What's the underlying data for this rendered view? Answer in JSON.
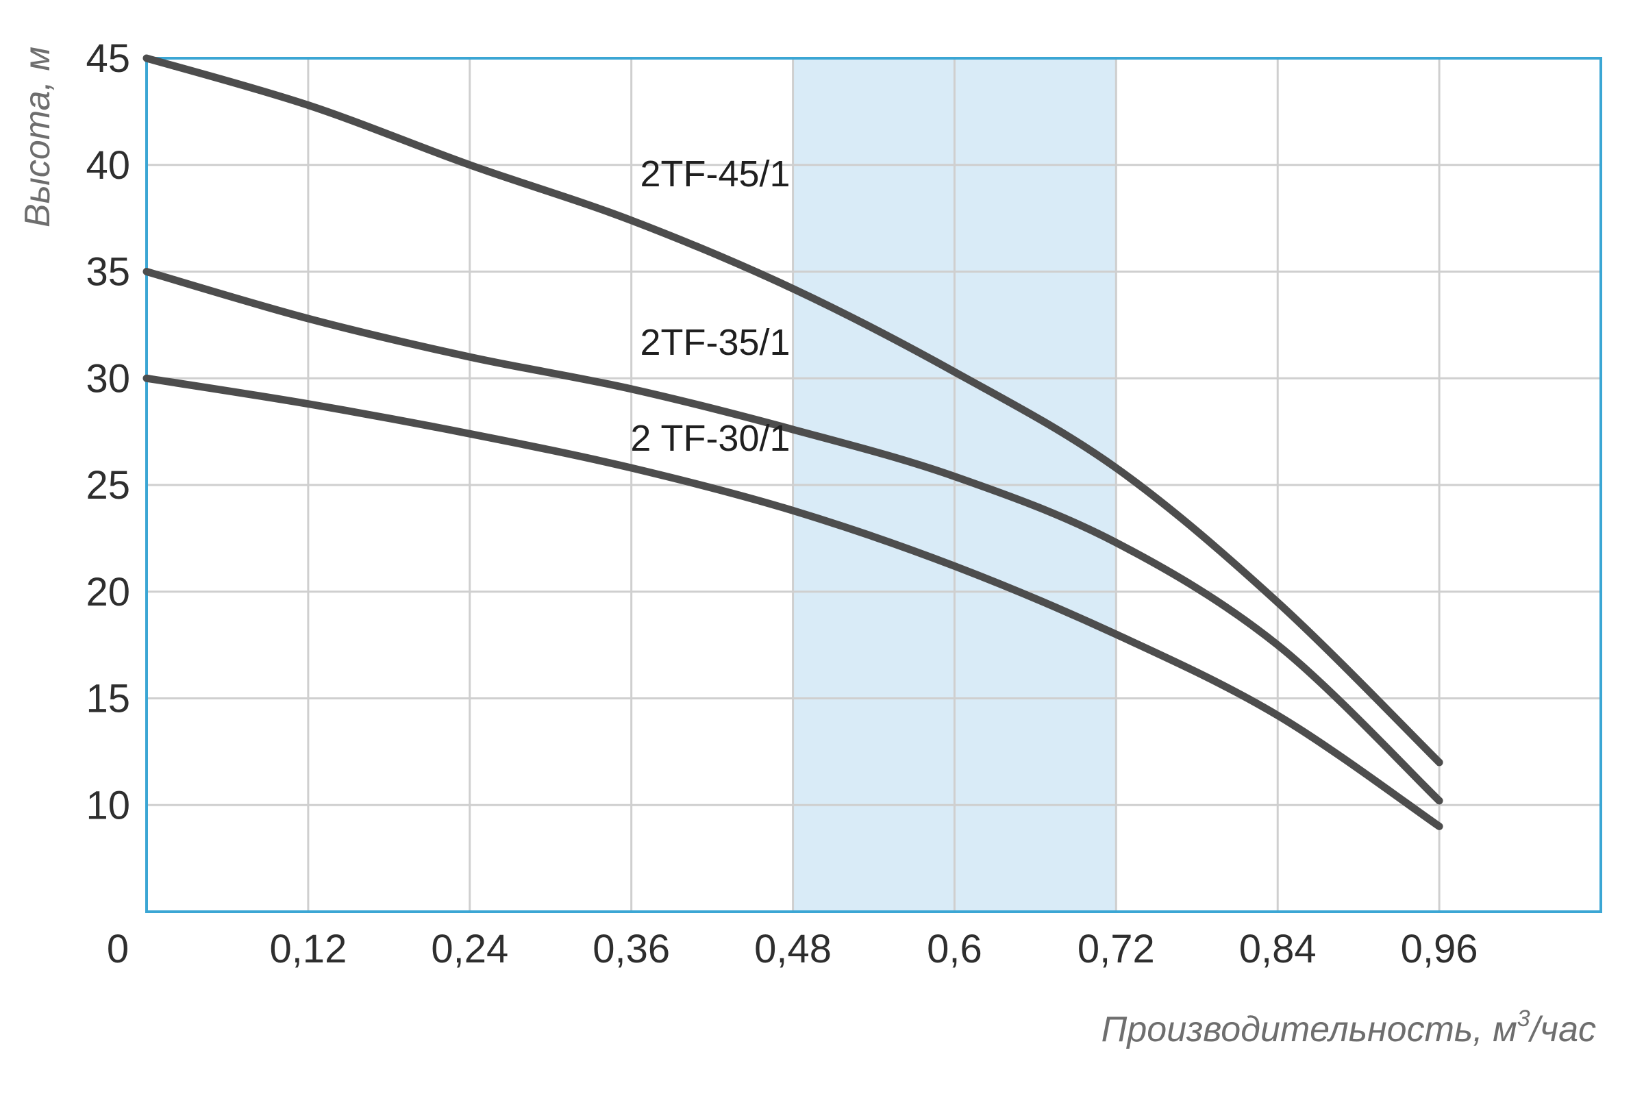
{
  "chart_data": {
    "type": "line",
    "ylabel": "Высота, м",
    "xlabel_main": "Производительность, м",
    "xlabel_sup": "3",
    "xlabel_tail": "/час",
    "x_ticks": [
      0.12,
      0.24,
      0.36,
      0.48,
      0.6,
      0.72,
      0.84,
      0.96
    ],
    "x_tick_labels": [
      "0,12",
      "0,24",
      "0,36",
      "0,48",
      "0,6",
      "0,72",
      "0,84",
      "0,96"
    ],
    "y_ticks": [
      10,
      15,
      20,
      25,
      30,
      35,
      40,
      45
    ],
    "y_tick_labels": [
      "10",
      "15",
      "20",
      "25",
      "30",
      "35",
      "40",
      "45"
    ],
    "origin_label": "0",
    "xlim": [
      0,
      1.08
    ],
    "ylim": [
      5,
      45
    ],
    "grid": true,
    "highlight_band": {
      "x_from": 0.48,
      "x_to": 0.72,
      "color": "#d9ebf7"
    },
    "colors": {
      "frame": "#3ba6d4",
      "grid": "#cfcfcf",
      "line": "#4d4d4d"
    },
    "series": [
      {
        "name": "2TF-45/1",
        "x": [
          0,
          0.12,
          0.24,
          0.36,
          0.48,
          0.6,
          0.72,
          0.84,
          0.96
        ],
        "y": [
          45,
          42.8,
          40,
          37.4,
          34.2,
          30.3,
          25.8,
          19.5,
          12
        ]
      },
      {
        "name": "2TF-35/1",
        "x": [
          0,
          0.12,
          0.24,
          0.36,
          0.48,
          0.6,
          0.72,
          0.84,
          0.96
        ],
        "y": [
          35,
          32.8,
          31,
          29.5,
          27.6,
          25.4,
          22.3,
          17.5,
          10.2
        ]
      },
      {
        "name": "2 TF-30/1",
        "x": [
          0,
          0.12,
          0.24,
          0.36,
          0.48,
          0.6,
          0.72,
          0.84,
          0.96
        ],
        "y": [
          30,
          28.8,
          27.4,
          25.8,
          23.8,
          21.2,
          18,
          14.2,
          9
        ]
      }
    ]
  }
}
